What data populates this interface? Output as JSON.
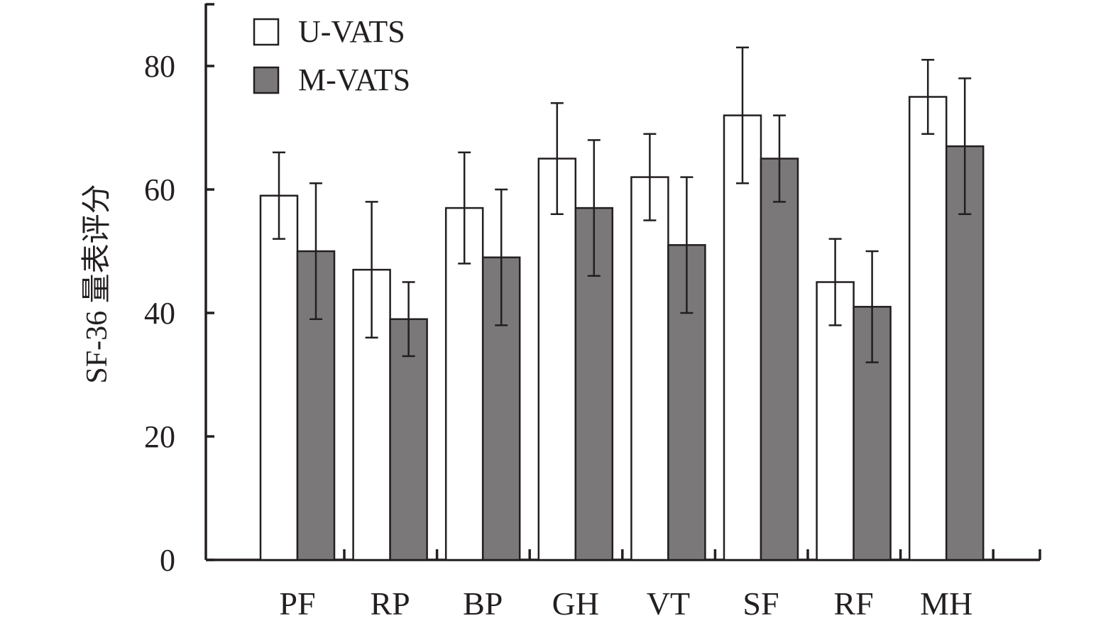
{
  "chart_data": {
    "type": "bar",
    "title": "",
    "xlabel": "",
    "ylabel": "SF-36 量表评分",
    "ylim": [
      0,
      90
    ],
    "yticks": [
      0,
      20,
      40,
      60,
      80
    ],
    "categories": [
      "PF",
      "RP",
      "BP",
      "GH",
      "VT",
      "SF",
      "RF",
      "MH"
    ],
    "series": [
      {
        "name": "U-VATS",
        "color": "#ffffff",
        "values": [
          59,
          47,
          57,
          65,
          62,
          72,
          45,
          75
        ],
        "err_low": [
          52,
          36,
          48,
          56,
          55,
          61,
          38,
          69
        ],
        "err_high": [
          66,
          58,
          66,
          74,
          69,
          83,
          52,
          81
        ]
      },
      {
        "name": "M-VATS",
        "color": "#7a7879",
        "values": [
          50,
          39,
          49,
          57,
          51,
          65,
          41,
          67
        ],
        "err_low": [
          39,
          33,
          38,
          46,
          40,
          58,
          32,
          56
        ],
        "err_high": [
          61,
          45,
          60,
          68,
          62,
          72,
          50,
          78
        ]
      }
    ],
    "legend": "top-left",
    "grid": false
  }
}
